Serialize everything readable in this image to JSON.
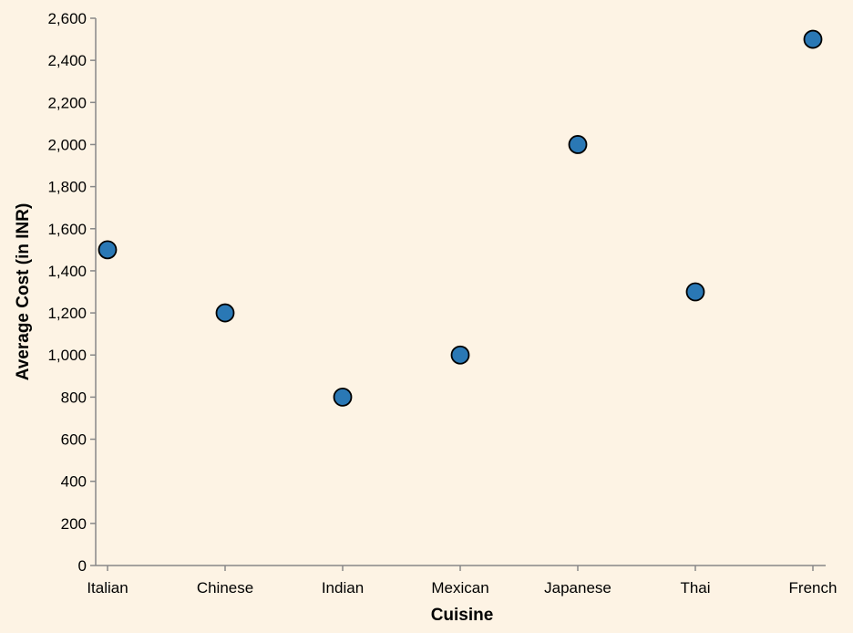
{
  "chart_data": {
    "type": "scatter",
    "categories": [
      "Italian",
      "Chinese",
      "Indian",
      "Mexican",
      "Japanese",
      "Thai",
      "French"
    ],
    "values": [
      1500,
      1200,
      800,
      1000,
      2000,
      1300,
      2500
    ],
    "xlabel": "Cuisine",
    "ylabel": "Average Cost (in INR)",
    "ylim": [
      0,
      2600
    ],
    "yticks": [
      0,
      200,
      400,
      600,
      800,
      1000,
      1200,
      1400,
      1600,
      1800,
      2000,
      2200,
      2400,
      2600
    ],
    "ytick_labels": [
      "0",
      "200",
      "400",
      "600",
      "800",
      "1,000",
      "1,200",
      "1,400",
      "1,600",
      "1,800",
      "2,000",
      "2,200",
      "2,400",
      "2,600"
    ],
    "grid": false,
    "legend": "none",
    "colors": {
      "background": "#fdf3e4",
      "point_fill": "#2a78b5",
      "point_stroke": "#000000",
      "axis": "#888888"
    }
  }
}
